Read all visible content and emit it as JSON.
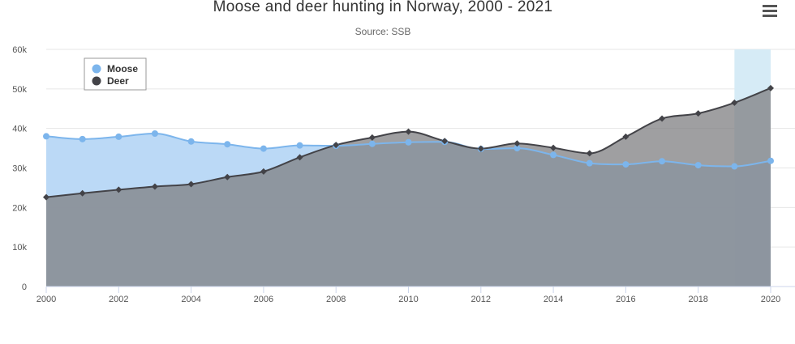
{
  "chart_data": {
    "type": "area",
    "title": "Moose and deer hunting in Norway, 2000 - 2021",
    "subtitle": "Source: SSB",
    "xlabel": "",
    "ylabel": "",
    "x": [
      2000,
      2001,
      2002,
      2003,
      2004,
      2005,
      2006,
      2007,
      2008,
      2009,
      2010,
      2011,
      2012,
      2013,
      2014,
      2015,
      2016,
      2017,
      2018,
      2019,
      2020
    ],
    "x_ticks": [
      "2000",
      "2002",
      "2004",
      "2006",
      "2008",
      "2010",
      "2012",
      "2014",
      "2016",
      "2018",
      "2020"
    ],
    "y_ticks": [
      "0",
      "10k",
      "20k",
      "30k",
      "40k",
      "50k",
      "60k"
    ],
    "xlim": [
      2000,
      2020
    ],
    "ylim": [
      0,
      60000
    ],
    "grid": true,
    "legend_position": "top-left",
    "highlight_band": {
      "from": 2019,
      "to": 2020,
      "color": "#d6ebf6"
    },
    "series": [
      {
        "name": "Moose",
        "color": "#7cb5ec",
        "fill": "#b7d7f5",
        "marker": "circle",
        "values": [
          38000,
          37300,
          37900,
          38700,
          36700,
          36000,
          34900,
          35700,
          35600,
          36100,
          36500,
          36600,
          34800,
          35000,
          33300,
          31200,
          30900,
          31700,
          30700,
          30400,
          31800
        ]
      },
      {
        "name": "Deer",
        "color": "#434348",
        "fill": "#7f7f82",
        "marker": "diamond",
        "values": [
          22600,
          23600,
          24500,
          25300,
          25900,
          27700,
          29100,
          32700,
          35800,
          37700,
          39200,
          36800,
          34900,
          36200,
          35100,
          33700,
          37900,
          42500,
          43800,
          46500,
          50200
        ]
      }
    ]
  }
}
